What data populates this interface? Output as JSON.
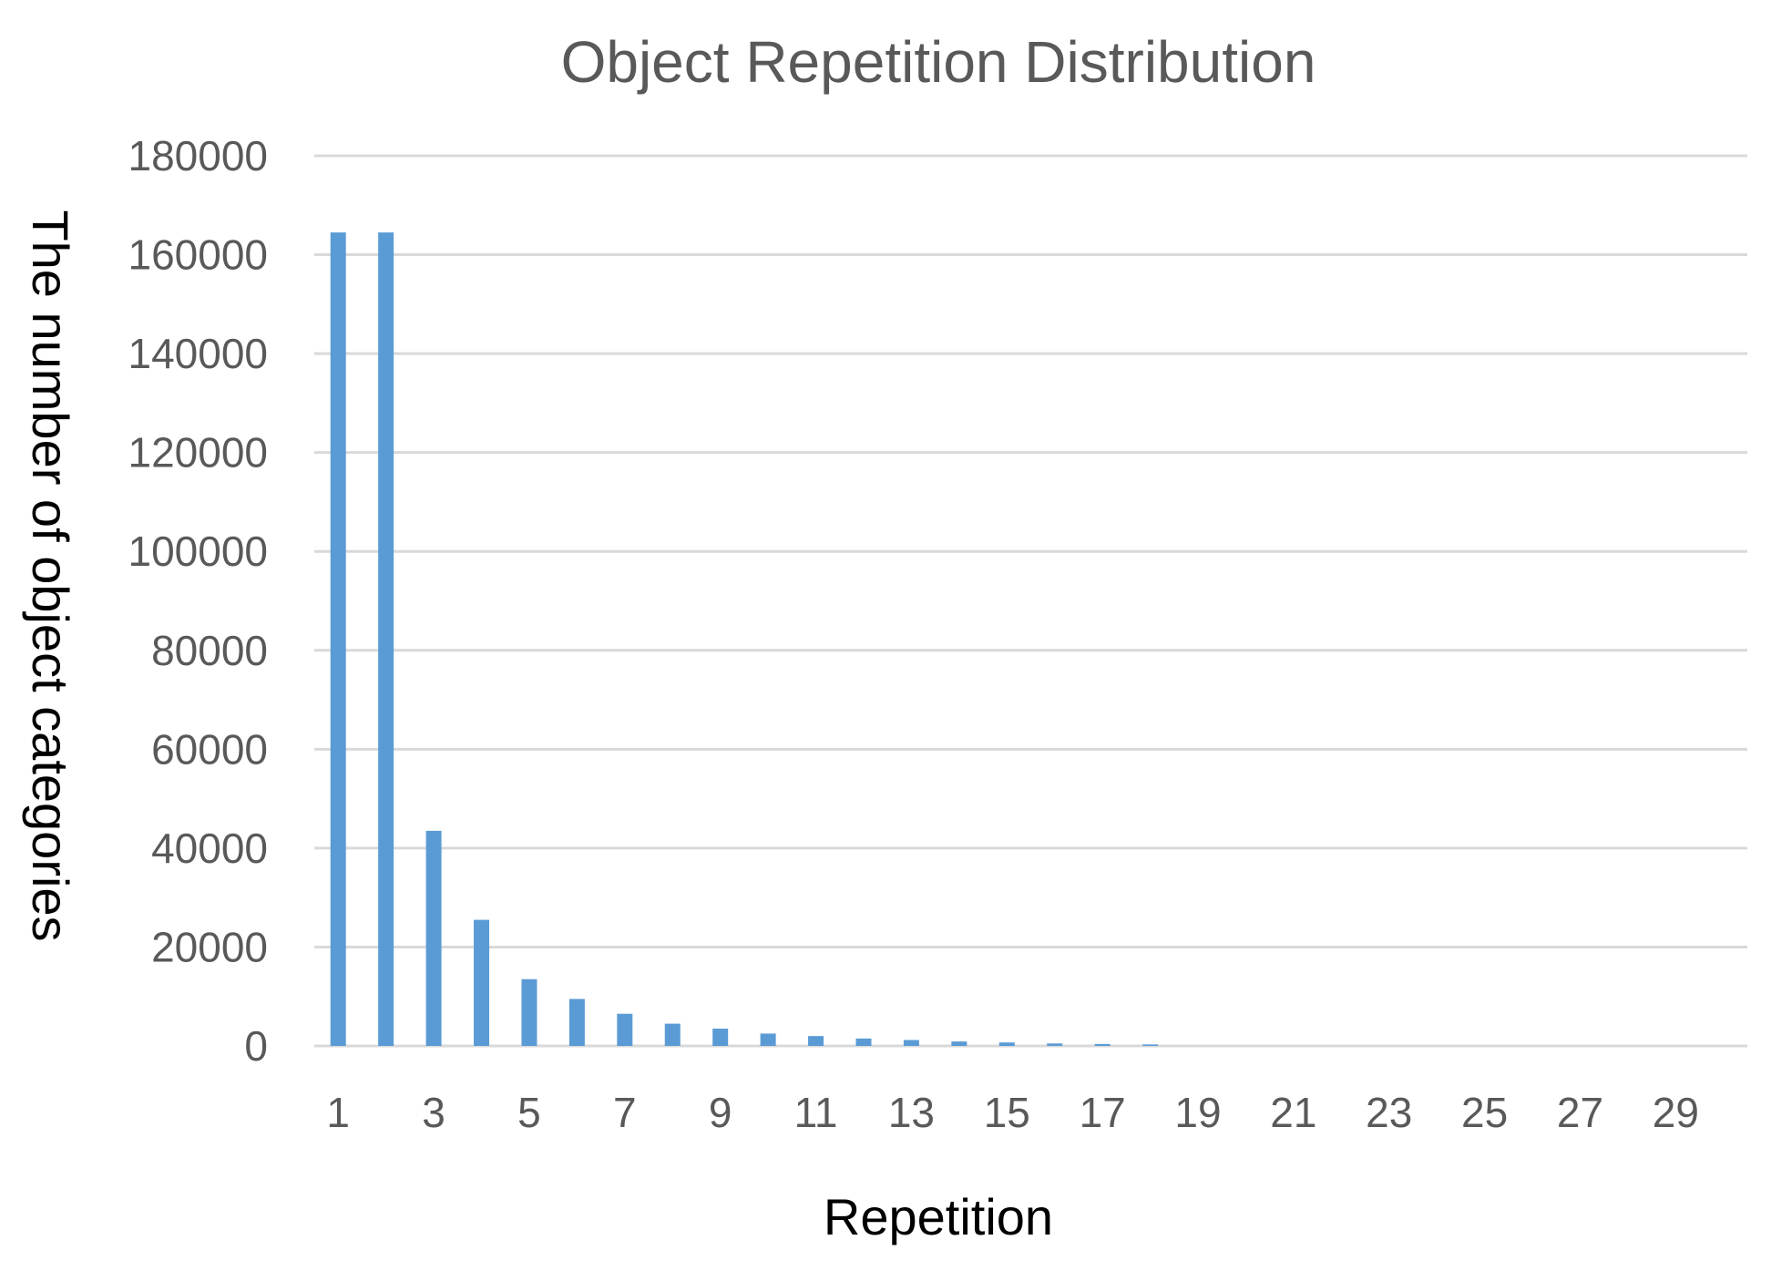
{
  "chart_data": {
    "type": "bar",
    "title": "Object Repetition Distribution",
    "xlabel": "Repetition",
    "ylabel": "The number of object categories",
    "ylim": [
      0,
      180000
    ],
    "yticks": [
      "0",
      "20000",
      "40000",
      "60000",
      "80000",
      "100000",
      "120000",
      "140000",
      "160000",
      "180000"
    ],
    "categories": [
      1,
      2,
      3,
      4,
      5,
      6,
      7,
      8,
      9,
      10,
      11,
      12,
      13,
      14,
      15,
      16,
      17,
      18,
      19,
      20,
      21,
      22,
      23,
      24,
      25,
      26,
      27,
      28,
      29,
      30
    ],
    "xtick_labels": [
      "1",
      "3",
      "5",
      "7",
      "9",
      "11",
      "13",
      "15",
      "17",
      "19",
      "21",
      "23",
      "25",
      "27",
      "29"
    ],
    "values": [
      164500,
      164500,
      43500,
      25500,
      13500,
      9500,
      6500,
      4500,
      3500,
      2500,
      2000,
      1500,
      1200,
      900,
      700,
      500,
      400,
      300,
      0,
      0,
      0,
      0,
      0,
      0,
      0,
      0,
      0,
      0,
      0,
      0
    ],
    "grid": true,
    "legend": "none",
    "colors": {
      "bar": "#5b9bd5",
      "grid": "#d9d9d9",
      "text": "#595959",
      "axis_title": "#000000"
    }
  }
}
